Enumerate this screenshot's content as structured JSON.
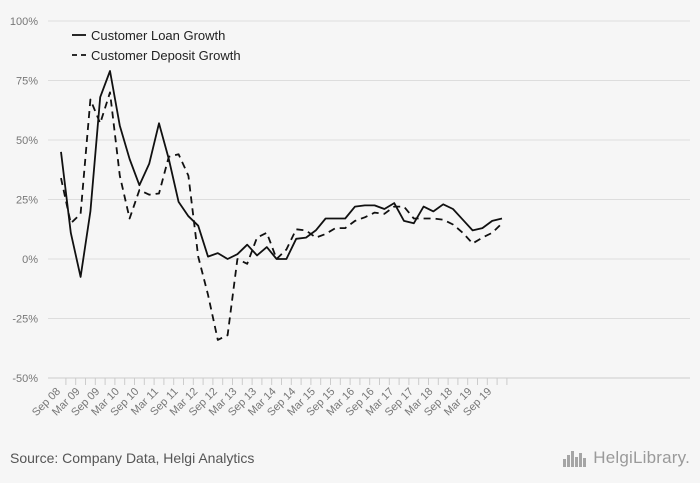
{
  "chart_data": {
    "type": "line",
    "title": "",
    "xlabel": "",
    "ylabel": "",
    "ylim": [
      -50,
      100
    ],
    "y_ticks": [
      -50,
      -25,
      0,
      25,
      50,
      75,
      100
    ],
    "y_tick_labels": [
      "-50%",
      "-25%",
      "0%",
      "25%",
      "50%",
      "75%",
      "100%"
    ],
    "x_tick_labels": [
      "Sep 08",
      "Mar 09",
      "Sep 09",
      "Mar 10",
      "Sep 10",
      "Mar 11",
      "Sep 11",
      "Mar 12",
      "Sep 12",
      "Mar 13",
      "Sep 13",
      "Mar 14",
      "Sep 14",
      "Mar 15",
      "Sep 15",
      "Mar 16",
      "Sep 16",
      "Mar 17",
      "Sep 17",
      "Mar 18",
      "Sep 18",
      "Mar 19",
      "Sep 19"
    ],
    "grid": true,
    "legend_position": "top-left",
    "series": [
      {
        "name": "Customer Loan Growth",
        "line_style": "solid",
        "values": [
          45,
          11,
          -7.5,
          20,
          68,
          79,
          56,
          42,
          31,
          40,
          57,
          42,
          24,
          18,
          14,
          1,
          2.5,
          0,
          2,
          6,
          1.5,
          5,
          0,
          0,
          8.5,
          9,
          12,
          17,
          17,
          17,
          22,
          22.5,
          22.5,
          21,
          23.5,
          16,
          15,
          22,
          20,
          23,
          21,
          16.5,
          12,
          13,
          16,
          17
        ]
      },
      {
        "name": "Customer Deposit Growth",
        "line_style": "dashed",
        "values": [
          34,
          15,
          19,
          67,
          57,
          70,
          35,
          17,
          29,
          27,
          27.5,
          43,
          44,
          35,
          1,
          -15,
          -34,
          -32,
          0,
          -2,
          9,
          11,
          0,
          4,
          12.5,
          12,
          9,
          10.5,
          13,
          13,
          16,
          17.5,
          19.5,
          19,
          22,
          22,
          17,
          17,
          17,
          16.5,
          14.5,
          11,
          6.5,
          9,
          11,
          15
        ]
      }
    ]
  },
  "source_text": "Source: Company Data, Helgi Analytics",
  "brand": {
    "name": "HelgiLibrary.",
    "icon": "city-skyline-icon"
  },
  "colors": {
    "line": "#111111",
    "grid": "#dddddd",
    "axis_text": "#777777"
  }
}
